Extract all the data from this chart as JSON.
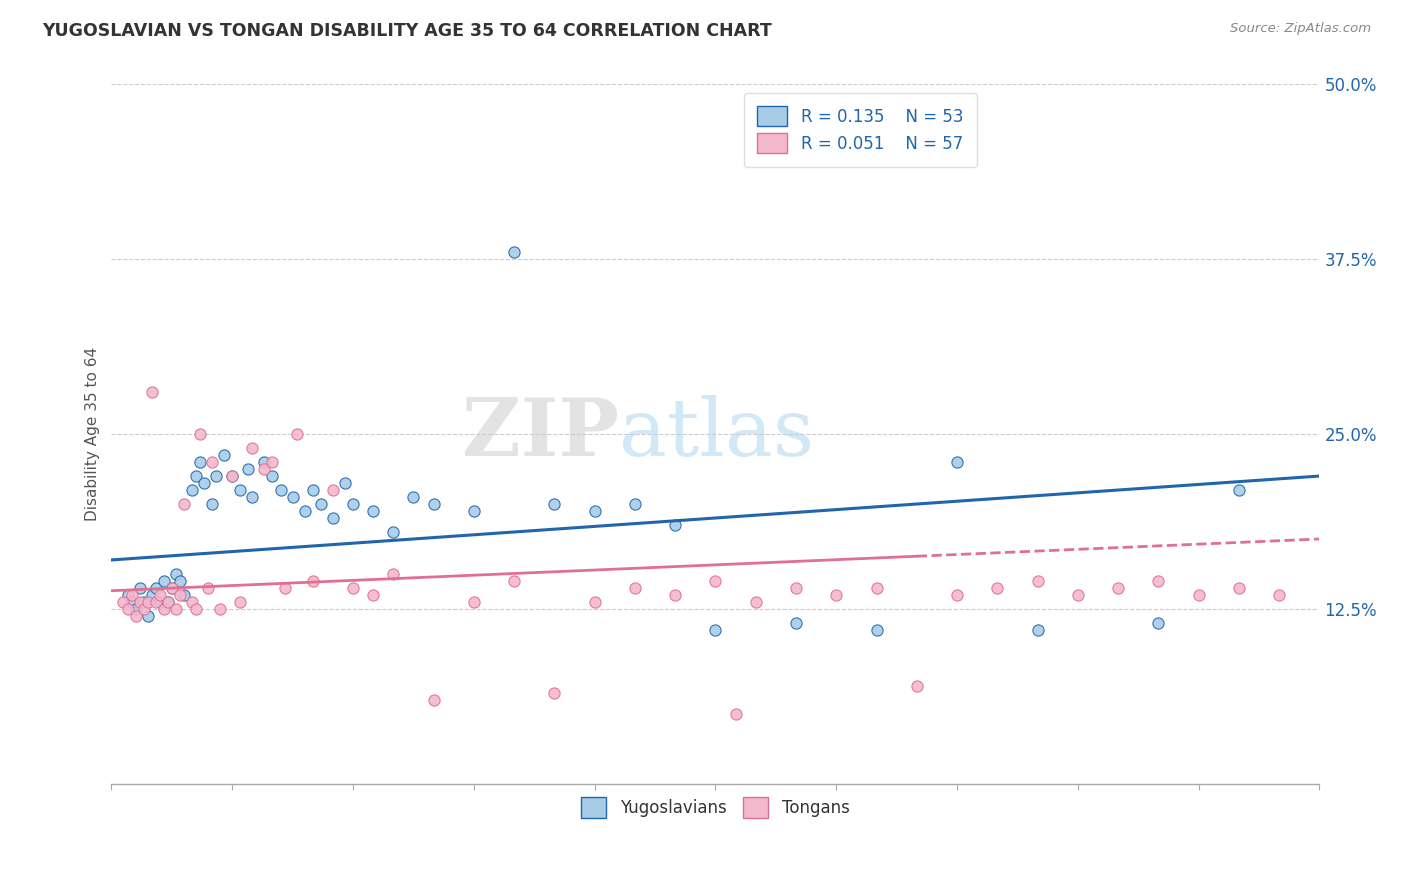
{
  "title": "YUGOSLAVIAN VS TONGAN DISABILITY AGE 35 TO 64 CORRELATION CHART",
  "source_text": "Source: ZipAtlas.com",
  "ylabel": "Disability Age 35 to 64",
  "xmin": 0.0,
  "xmax": 30.0,
  "ymin": 0.0,
  "ymax": 50.0,
  "yticks": [
    12.5,
    25.0,
    37.5,
    50.0
  ],
  "ytick_labels": [
    "12.5%",
    "25.0%",
    "37.5%",
    "50.0%"
  ],
  "legend_r1": "R = 0.135",
  "legend_n1": "N = 53",
  "legend_r2": "R = 0.051",
  "legend_n2": "N = 57",
  "color_yugo": "#a8cce8",
  "color_tonga": "#f4b8cc",
  "color_yugo_line": "#2166ac",
  "color_tonga_line": "#e07090",
  "background_color": "#ffffff",
  "grid_color": "#cccccc",
  "watermark_zip": "ZIP",
  "watermark_atlas": "atlas",
  "yugo_scatter_x": [
    0.4,
    0.5,
    0.6,
    0.7,
    0.8,
    0.9,
    1.0,
    1.1,
    1.2,
    1.3,
    1.4,
    1.5,
    1.6,
    1.7,
    1.8,
    2.0,
    2.1,
    2.2,
    2.3,
    2.5,
    2.6,
    2.8,
    3.0,
    3.2,
    3.4,
    3.5,
    3.8,
    4.0,
    4.2,
    4.5,
    4.8,
    5.0,
    5.2,
    5.5,
    5.8,
    6.0,
    6.5,
    7.0,
    7.5,
    8.0,
    9.0,
    10.0,
    11.0,
    12.0,
    13.0,
    14.0,
    15.0,
    17.0,
    19.0,
    21.0,
    23.0,
    26.0,
    28.0
  ],
  "yugo_scatter_y": [
    13.5,
    13.0,
    12.5,
    14.0,
    13.0,
    12.0,
    13.5,
    14.0,
    13.0,
    14.5,
    13.0,
    14.0,
    15.0,
    14.5,
    13.5,
    21.0,
    22.0,
    23.0,
    21.5,
    20.0,
    22.0,
    23.5,
    22.0,
    21.0,
    22.5,
    20.5,
    23.0,
    22.0,
    21.0,
    20.5,
    19.5,
    21.0,
    20.0,
    19.0,
    21.5,
    20.0,
    19.5,
    18.0,
    20.5,
    20.0,
    19.5,
    38.0,
    20.0,
    19.5,
    20.0,
    18.5,
    11.0,
    11.5,
    11.0,
    23.0,
    11.0,
    11.5,
    21.0
  ],
  "tonga_scatter_x": [
    0.3,
    0.4,
    0.5,
    0.6,
    0.7,
    0.8,
    0.9,
    1.0,
    1.1,
    1.2,
    1.3,
    1.4,
    1.5,
    1.6,
    1.7,
    1.8,
    2.0,
    2.1,
    2.2,
    2.4,
    2.5,
    2.7,
    3.0,
    3.2,
    3.5,
    3.8,
    4.0,
    4.3,
    4.6,
    5.0,
    5.5,
    6.0,
    6.5,
    7.0,
    8.0,
    9.0,
    10.0,
    11.0,
    12.0,
    13.0,
    14.0,
    15.0,
    16.0,
    17.0,
    18.0,
    19.0,
    20.0,
    21.0,
    22.0,
    23.0,
    24.0,
    25.0,
    26.0,
    27.0,
    28.0,
    29.0,
    15.5
  ],
  "tonga_scatter_y": [
    13.0,
    12.5,
    13.5,
    12.0,
    13.0,
    12.5,
    13.0,
    28.0,
    13.0,
    13.5,
    12.5,
    13.0,
    14.0,
    12.5,
    13.5,
    20.0,
    13.0,
    12.5,
    25.0,
    14.0,
    23.0,
    12.5,
    22.0,
    13.0,
    24.0,
    22.5,
    23.0,
    14.0,
    25.0,
    14.5,
    21.0,
    14.0,
    13.5,
    15.0,
    6.0,
    13.0,
    14.5,
    6.5,
    13.0,
    14.0,
    13.5,
    14.5,
    13.0,
    14.0,
    13.5,
    14.0,
    7.0,
    13.5,
    14.0,
    14.5,
    13.5,
    14.0,
    14.5,
    13.5,
    14.0,
    13.5,
    5.0
  ]
}
